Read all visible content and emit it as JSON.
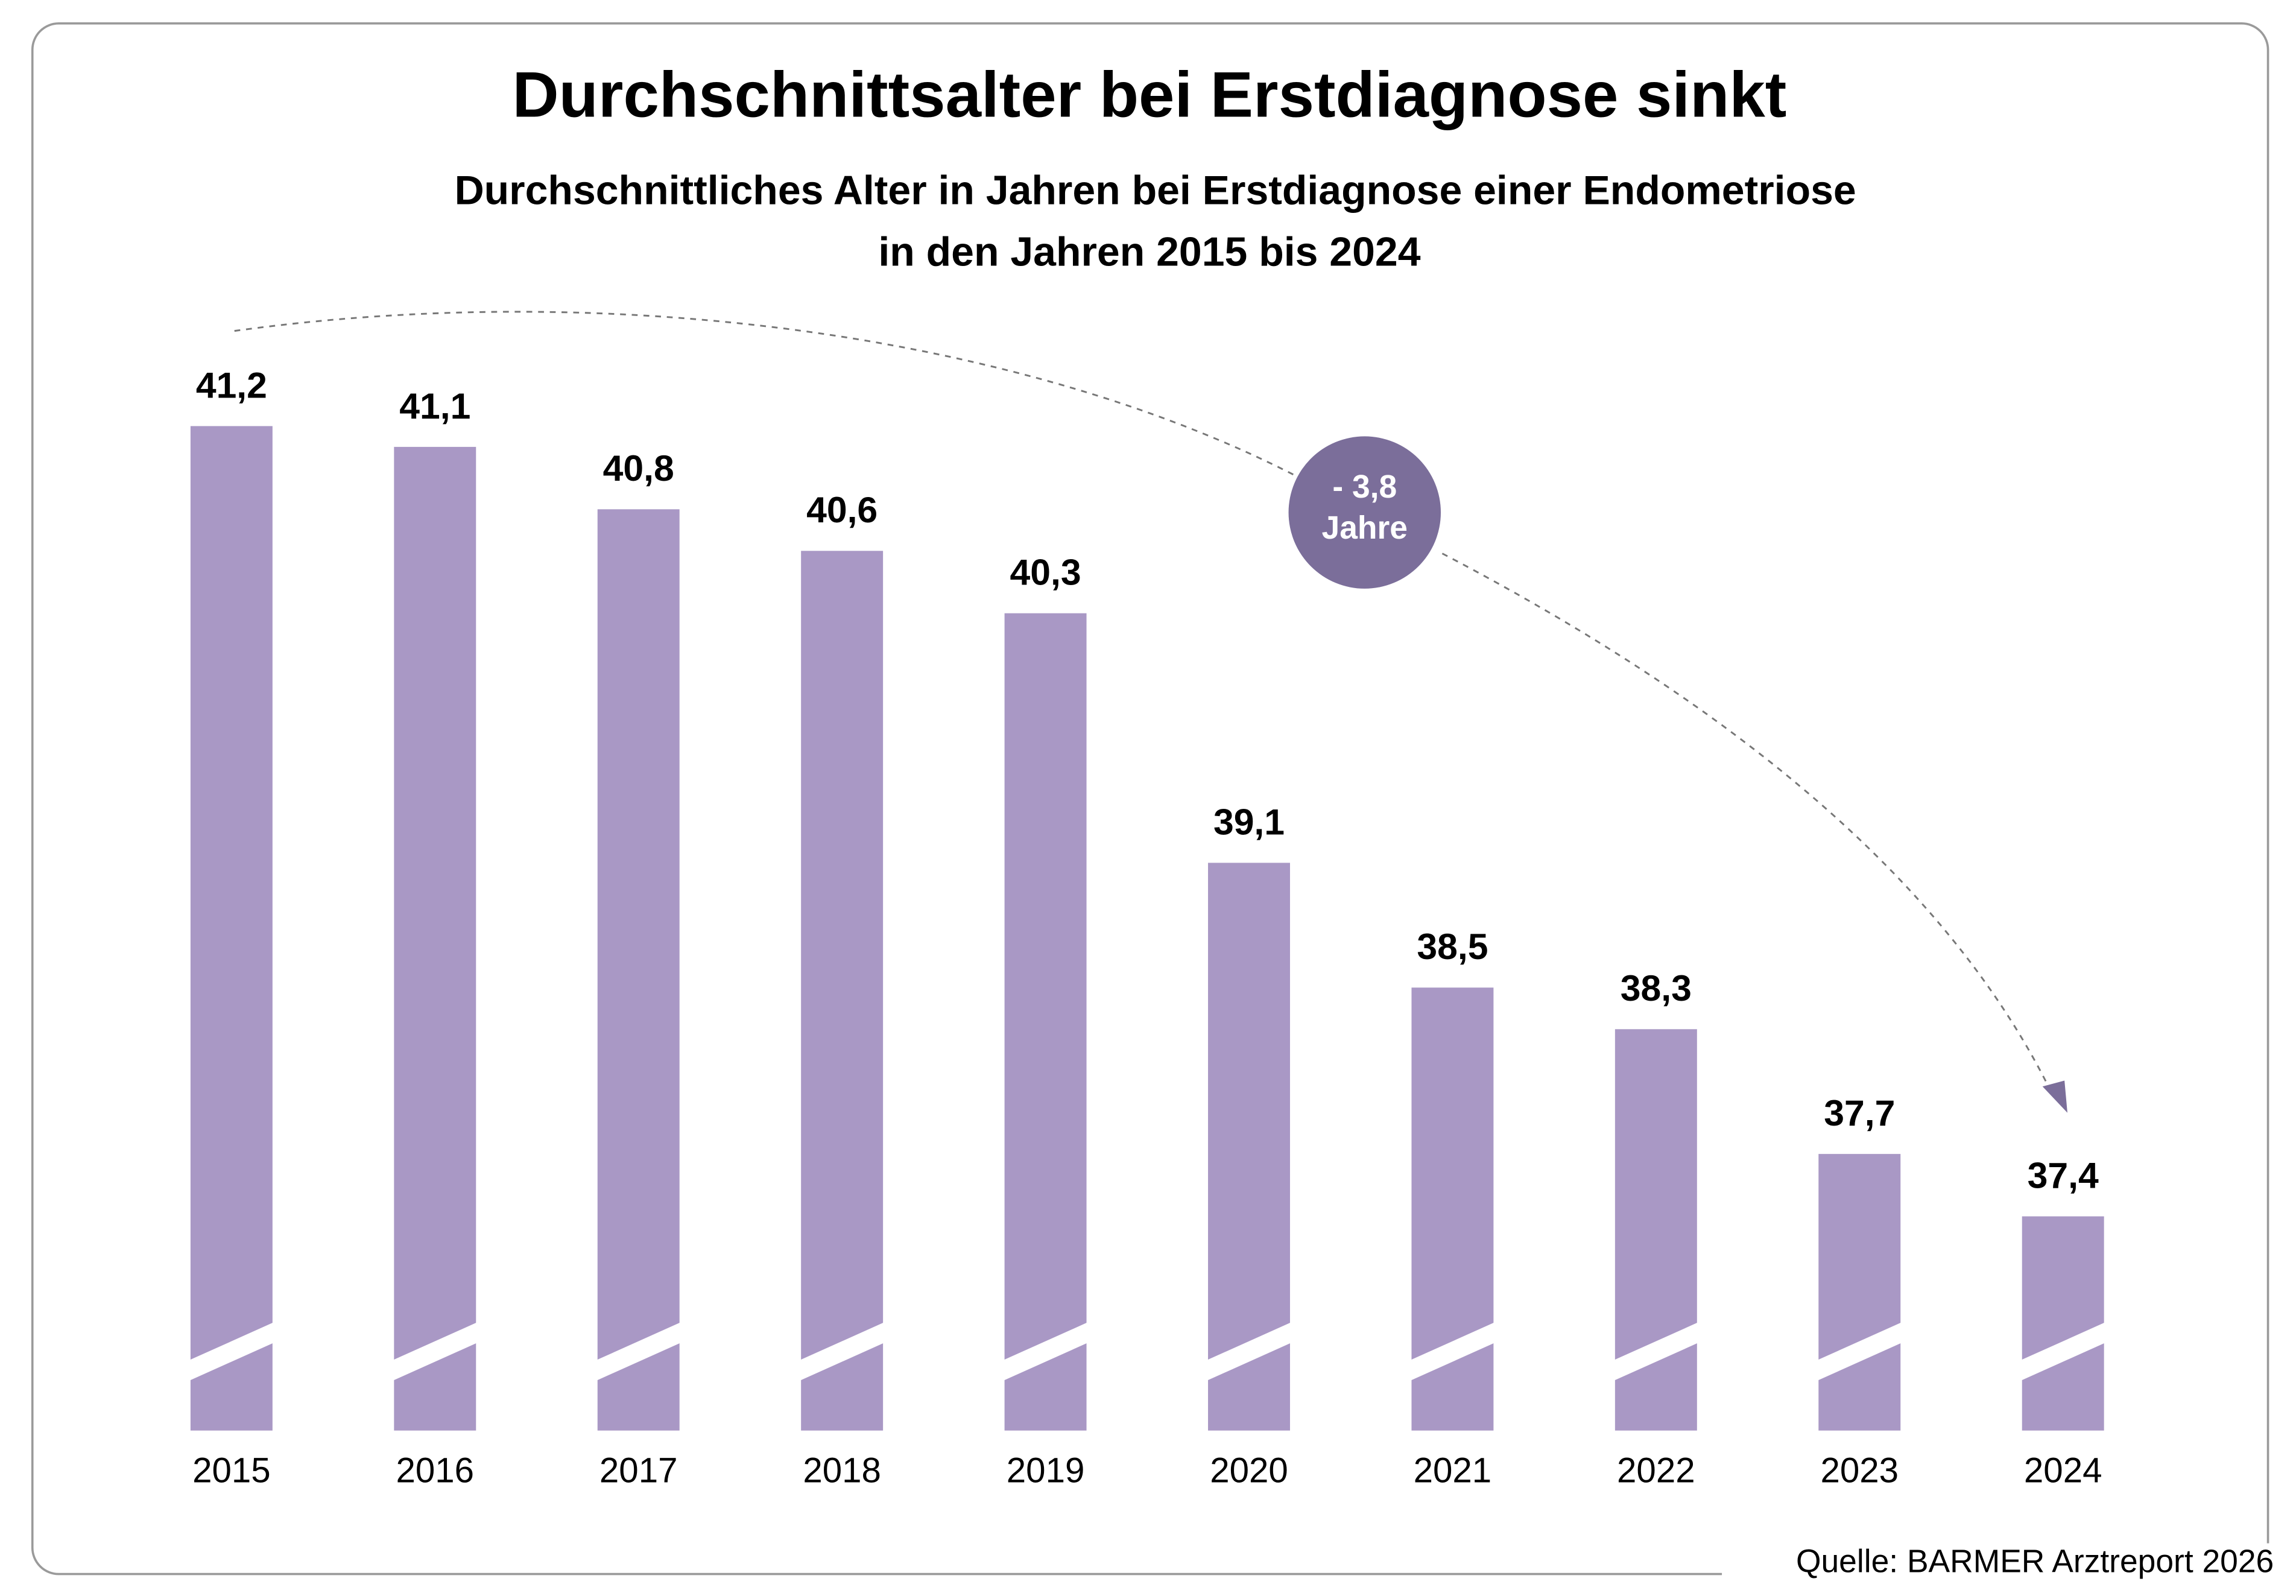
{
  "chart_data": {
    "type": "bar",
    "title": "Durchschnittsalter bei Erstdiagnose sinkt",
    "subtitle": [
      "Durchschnittliches Alter in Jahren bei Erstdiagnose einer Endometriose",
      "in den Jahren 2015 bis 2024"
    ],
    "categories": [
      "2015",
      "2016",
      "2017",
      "2018",
      "2019",
      "2020",
      "2021",
      "2022",
      "2023",
      "2024"
    ],
    "values": [
      41.2,
      41.1,
      40.8,
      40.6,
      40.3,
      39.1,
      38.5,
      38.3,
      37.7,
      37.4
    ],
    "value_labels": [
      "41,2",
      "41,1",
      "40,8",
      "40,6",
      "40,3",
      "39,1",
      "38,5",
      "38,3",
      "37,7",
      "37,4"
    ],
    "color": "#a998c5",
    "ylim": [
      36.37,
      41.2
    ],
    "annotation": [
      "- 3,8",
      "Jahre"
    ],
    "annotation_color": "#7b6e9a",
    "source": "Quelle: BARMER Arztreport 2026"
  }
}
